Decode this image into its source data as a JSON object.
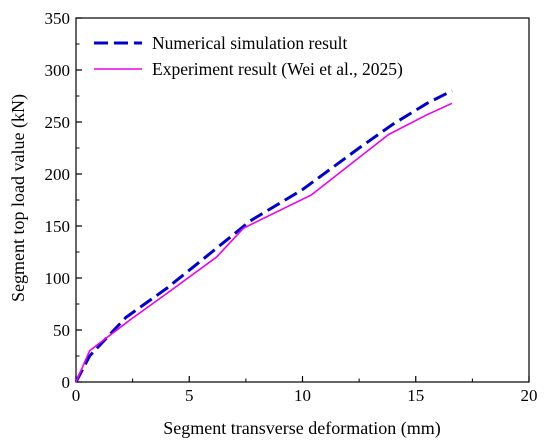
{
  "chart_data": {
    "type": "line",
    "title": "",
    "xlabel": "Segment transverse deformation (mm)",
    "ylabel": "Segment top load value  (kN)",
    "xlim": [
      0,
      20
    ],
    "ylim": [
      0,
      350
    ],
    "x_ticks": [
      "0",
      "5",
      "10",
      "15",
      "20"
    ],
    "y_ticks": [
      "0",
      "50",
      "100",
      "150",
      "200",
      "250",
      "300",
      "350"
    ],
    "grid": false,
    "legend_position": "top-left",
    "series": [
      {
        "name": "Numerical simulation result",
        "style": "dashed",
        "color": "#0000cc",
        "x": [
          0,
          0.6,
          2.2,
          4.0,
          6.0,
          7.7,
          10.0,
          12.5,
          14.0,
          15.5,
          16.6
        ],
        "y": [
          0,
          25,
          62,
          90,
          125,
          155,
          185,
          225,
          248,
          268,
          280
        ]
      },
      {
        "name": "Experiment result (Wei et al., 2025)",
        "style": "solid",
        "color": "#ee00ee",
        "x": [
          0,
          0.6,
          2.4,
          4.0,
          6.2,
          7.4,
          10.4,
          13.8,
          15.5,
          16.6
        ],
        "y": [
          0,
          30,
          60,
          85,
          120,
          148,
          180,
          238,
          257,
          268
        ]
      }
    ]
  }
}
